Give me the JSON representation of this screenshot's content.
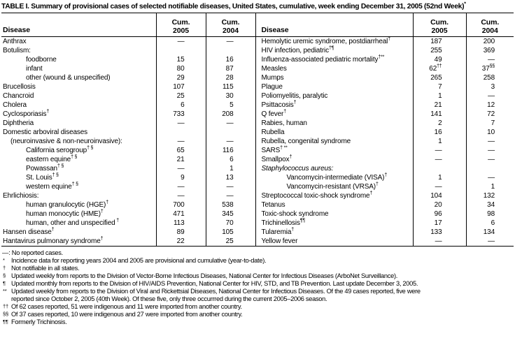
{
  "title": {
    "text": "TABLE I. Summary of provisional cases of selected notifiable diseases, United States, cumulative, week ending December 31, 2005 (52nd Week)",
    "sup": "*"
  },
  "header": {
    "disease": "Disease",
    "cum": "Cum.",
    "y2005": "2005",
    "y2004": "2004"
  },
  "rows": [
    {
      "left": {
        "label": "Anthrax",
        "c05": "—",
        "c04": "—"
      },
      "right": {
        "label": "Hemolytic uremic syndrome, postdiarrheal",
        "sup": "†",
        "c05": "187",
        "c04": "200"
      }
    },
    {
      "left": {
        "label": "Botulism:",
        "c05": "",
        "c04": ""
      },
      "right": {
        "label": "HIV infection, pediatric",
        "sup": "†¶",
        "c05": "255",
        "c04": "369"
      }
    },
    {
      "left": {
        "label": "foodborne",
        "indent": 2,
        "c05": "15",
        "c04": "16"
      },
      "right": {
        "label": "Influenza-associated pediatric mortality",
        "sup": "†**",
        "c05": "49",
        "c04": "—"
      }
    },
    {
      "left": {
        "label": "infant",
        "indent": 2,
        "c05": "80",
        "c04": "87"
      },
      "right": {
        "label": "Measles",
        "c05": "62",
        "c05_sup": "††",
        "c04": "37",
        "c04_sup": "§§"
      }
    },
    {
      "left": {
        "label": "other (wound & unspecified)",
        "indent": 2,
        "c05": "29",
        "c04": "28"
      },
      "right": {
        "label": "Mumps",
        "c05": "265",
        "c04": "258"
      }
    },
    {
      "left": {
        "label": "Brucellosis",
        "c05": "107",
        "c04": "115"
      },
      "right": {
        "label": "Plague",
        "c05": "7",
        "c04": "3"
      }
    },
    {
      "left": {
        "label": "Chancroid",
        "c05": "25",
        "c04": "30"
      },
      "right": {
        "label": "Poliomyelitis, paralytic",
        "c05": "1",
        "c04": "—"
      }
    },
    {
      "left": {
        "label": "Cholera",
        "c05": "6",
        "c04": "5"
      },
      "right": {
        "label": "Psittacosis",
        "sup": "†",
        "c05": "21",
        "c04": "12"
      }
    },
    {
      "left": {
        "label": "Cyclosporiasis",
        "sup": "†",
        "c05": "733",
        "c04": "208"
      },
      "right": {
        "label": "Q fever",
        "sup": "†",
        "c05": "141",
        "c04": "72"
      }
    },
    {
      "left": {
        "label": "Diphtheria",
        "c05": "—",
        "c04": "—"
      },
      "right": {
        "label": "Rabies, human",
        "c05": "2",
        "c04": "7"
      }
    },
    {
      "left": {
        "label": "Domestic arboviral diseases",
        "c05": "",
        "c04": ""
      },
      "right": {
        "label": "Rubella",
        "c05": "16",
        "c04": "10"
      }
    },
    {
      "left": {
        "label": "(neuroinvasive & non-neuroinvasive):",
        "indent": 1,
        "c05": "—",
        "c04": "—"
      },
      "right": {
        "label": "Rubella, congenital syndrome",
        "c05": "1",
        "c04": "—"
      }
    },
    {
      "left": {
        "label": "California serogroup",
        "sup": "† §",
        "indent": 2,
        "c05": "65",
        "c04": "116"
      },
      "right": {
        "label": "SARS",
        "sup": "† **",
        "c05": "—",
        "c04": "—"
      }
    },
    {
      "left": {
        "label": "eastern equine",
        "sup": "† §",
        "indent": 2,
        "c05": "21",
        "c04": "6"
      },
      "right": {
        "label": "Smallpox",
        "sup": "†",
        "c05": "—",
        "c04": "—"
      }
    },
    {
      "left": {
        "label": "Powassan",
        "sup": "† §",
        "indent": 2,
        "c05": "—",
        "c04": "1"
      },
      "right": {
        "label": "Staphylococcus aureus:",
        "italic": true,
        "c05": "",
        "c04": ""
      }
    },
    {
      "left": {
        "label": "St. Louis",
        "sup": "† §",
        "indent": 2,
        "c05": "9",
        "c04": "13"
      },
      "right": {
        "label": "Vancomycin-intermediate (VISA)",
        "sup": "†",
        "indent": 2,
        "c05": "1",
        "c04": "—"
      }
    },
    {
      "left": {
        "label": "western equine",
        "sup": "† §",
        "indent": 2,
        "c05": "—",
        "c04": "—"
      },
      "right": {
        "label": "Vancomycin-resistant (VRSA)",
        "sup": "†",
        "indent": 2,
        "c05": "—",
        "c04": "1"
      }
    },
    {
      "left": {
        "label": "Ehrlichiosis:",
        "c05": "—",
        "c04": "—"
      },
      "right": {
        "label": "Streptococcal toxic-shock syndrome",
        "sup": "†",
        "c05": "104",
        "c04": "132"
      }
    },
    {
      "left": {
        "label": "human granulocytic (HGE)",
        "sup": "†",
        "indent": 2,
        "c05": "700",
        "c04": "538"
      },
      "right": {
        "label": "Tetanus",
        "c05": "20",
        "c04": "34"
      }
    },
    {
      "left": {
        "label": "human monocytic (HME)",
        "sup": "†",
        "indent": 2,
        "c05": "471",
        "c04": "345"
      },
      "right": {
        "label": "Toxic-shock syndrome",
        "c05": "96",
        "c04": "98"
      }
    },
    {
      "left": {
        "label": "human, other and unspecified",
        "sup": " †",
        "indent": 2,
        "c05": "113",
        "c04": "70"
      },
      "right": {
        "label": "Trichinellosis",
        "sup": "¶¶",
        "c05": "17",
        "c04": "6"
      }
    },
    {
      "left": {
        "label": "Hansen disease",
        "sup": "†",
        "c05": "89",
        "c04": "105"
      },
      "right": {
        "label": "Tularemia",
        "sup": "†",
        "c05": "133",
        "c04": "134"
      }
    },
    {
      "left": {
        "label": "Hantavirus pulmonary syndrome",
        "sup": "†",
        "c05": "22",
        "c04": "25"
      },
      "right": {
        "label": "Yellow fever",
        "c05": "—",
        "c04": "—"
      }
    }
  ],
  "footnotes": [
    {
      "marker": "—:",
      "raised": false,
      "lines": [
        "No reported cases."
      ]
    },
    {
      "marker": "*",
      "raised": true,
      "lines": [
        "Incidence data for reporting years 2004 and 2005 are provisional and cumulative (year-to-date)."
      ]
    },
    {
      "marker": "†",
      "raised": true,
      "lines": [
        "Not notifiable in all states."
      ]
    },
    {
      "marker": "§",
      "raised": true,
      "lines": [
        "Updated weekly from reports to the Division of Vector-Borne Infectious Diseases, National Center for Infectious Diseases (ArboNet Surveillance)."
      ]
    },
    {
      "marker": "¶",
      "raised": true,
      "lines": [
        "Updated monthly from reports to the Division of HIV/AIDS Prevention, National Center for HIV, STD, and TB Prevention. Last update December 3, 2005."
      ]
    },
    {
      "marker": "**",
      "raised": true,
      "lines": [
        "Updated weekly from reports to the Division of Viral and Rickettsial Diseases, National Center for Infectious Diseases. Of the 49 cases reported, five were",
        "reported since October 2, 2005 (40th Week). Of these five, only three occurrred during the current 2005–2006 season."
      ]
    },
    {
      "marker": "††",
      "raised": true,
      "lines": [
        "Of 62 cases reported, 51 were indigenous and 11 were imported from another country."
      ]
    },
    {
      "marker": "§§",
      "raised": true,
      "lines": [
        "Of 37 cases reported, 10 were indigenous and 27 were imported from another country."
      ]
    },
    {
      "marker": "¶¶",
      "raised": true,
      "lines": [
        "Formerly Trichinosis."
      ]
    }
  ]
}
